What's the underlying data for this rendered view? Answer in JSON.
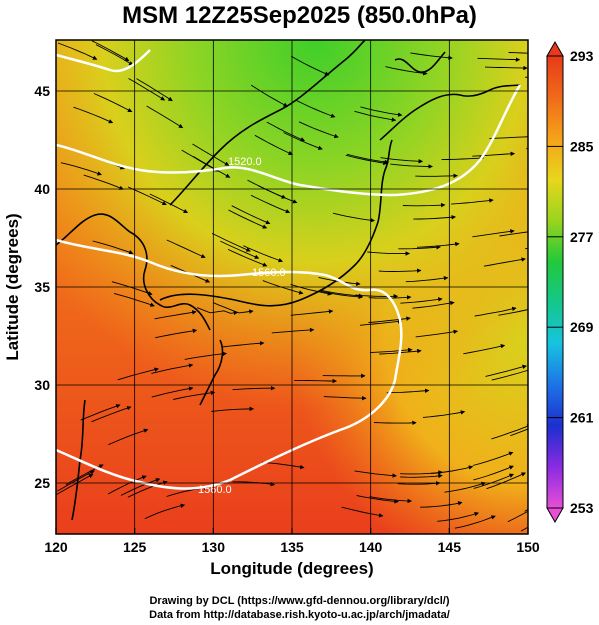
{
  "title": "MSM 12Z25Sep2025 (850.0hPa)",
  "x_axis": {
    "label": "Longitude (degrees)",
    "range": [
      120,
      150
    ],
    "ticks": [
      120,
      125,
      130,
      135,
      140,
      145,
      150
    ]
  },
  "y_axis": {
    "label": "Latitude  (degrees)",
    "range": [
      22.4,
      47.6
    ],
    "ticks": [
      25,
      30,
      35,
      40,
      45
    ]
  },
  "colorbar": {
    "range": [
      253,
      293
    ],
    "ticks": [
      293,
      285,
      277,
      269,
      261,
      253
    ],
    "colors": [
      "#e84fd6",
      "#8a2be2",
      "#1c2fd0",
      "#1d74e6",
      "#17c3e0",
      "#14c78a",
      "#22c93a",
      "#9ad41e",
      "#e8d61c",
      "#f5a21a",
      "#f06a1a",
      "#e83a1a"
    ]
  },
  "height_contours": [
    {
      "label": "1520.0"
    },
    {
      "label": "1560.0"
    },
    {
      "label": "1560.0"
    }
  ],
  "credits": {
    "line1": "Drawing by DCL (https://www.gfd-dennou.org/library/dcl/)",
    "line2": "Data from http://database.rish.kyoto-u.ac.jp/arch/jmadata/"
  }
}
